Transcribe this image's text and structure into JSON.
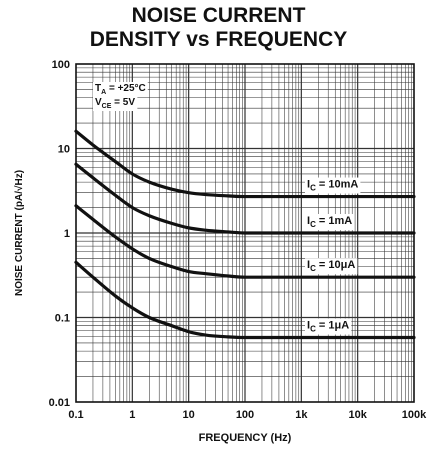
{
  "chart_data": {
    "type": "line",
    "title_lines": [
      "NOISE CURRENT",
      "DENSITY vs FREQUENCY"
    ],
    "xlabel": "FREQUENCY (Hz)",
    "ylabel": "NOISE CURRENT (pA/√Hz)",
    "x_scale": "log",
    "y_scale": "log",
    "xlim": [
      0.1,
      100000
    ],
    "ylim": [
      0.01,
      100
    ],
    "x_ticks": [
      {
        "value": 0.1,
        "label": "0.1"
      },
      {
        "value": 1,
        "label": "1"
      },
      {
        "value": 10,
        "label": "10"
      },
      {
        "value": 100,
        "label": "100"
      },
      {
        "value": 1000,
        "label": "1k"
      },
      {
        "value": 10000,
        "label": "10k"
      },
      {
        "value": 100000,
        "label": "100k"
      }
    ],
    "y_ticks": [
      {
        "value": 0.01,
        "label": "0.01"
      },
      {
        "value": 0.1,
        "label": "0.1"
      },
      {
        "value": 1,
        "label": "1"
      },
      {
        "value": 10,
        "label": "10"
      },
      {
        "value": 100,
        "label": "100"
      }
    ],
    "grid": true,
    "conditions": [
      {
        "main": "T",
        "sub": "A",
        "rest": " = +25°C"
      },
      {
        "main": "V",
        "sub": "CE",
        "rest": " = 5V"
      }
    ],
    "x": [
      0.1,
      0.2,
      0.5,
      1,
      2,
      5,
      10,
      20,
      50,
      100,
      1000,
      10000,
      100000
    ],
    "series": [
      {
        "name": "I_C = 10mA",
        "label": {
          "main": "I",
          "sub": "C",
          "rest": " = 10mA"
        },
        "values": [
          16,
          11,
          7,
          5,
          4,
          3.3,
          3,
          2.85,
          2.75,
          2.7,
          2.7,
          2.7,
          2.7
        ]
      },
      {
        "name": "I_C = 1mA",
        "label": {
          "main": "I",
          "sub": "C",
          "rest": " = 1mA"
        },
        "values": [
          6.5,
          4.5,
          2.8,
          2,
          1.6,
          1.3,
          1.15,
          1.08,
          1.03,
          1.0,
          1.0,
          1.0,
          1.0
        ]
      },
      {
        "name": "I_C = 10μA",
        "label": {
          "main": "I",
          "sub": "C",
          "rest": " = 10μA"
        },
        "values": [
          2.1,
          1.45,
          0.9,
          0.65,
          0.5,
          0.4,
          0.35,
          0.33,
          0.31,
          0.3,
          0.3,
          0.3,
          0.3
        ]
      },
      {
        "name": "I_C = 1μA",
        "label": {
          "main": "I",
          "sub": "C",
          "rest": " = 1μA"
        },
        "values": [
          0.45,
          0.3,
          0.18,
          0.13,
          0.1,
          0.08,
          0.068,
          0.062,
          0.059,
          0.058,
          0.058,
          0.058,
          0.058
        ]
      }
    ]
  }
}
